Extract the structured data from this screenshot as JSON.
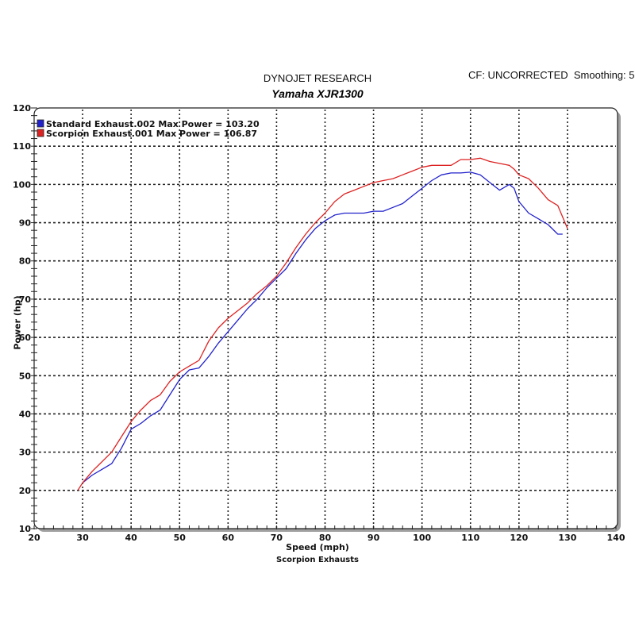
{
  "header": {
    "company": "DYNOJET RESEARCH",
    "vehicle": "Yamaha XJR1300",
    "info": "CF: UNCORRECTED  Smoothing: 5"
  },
  "legend": [
    {
      "label": "Standard Exhaust.002 Max Power = 103.20",
      "color": "#2222cc"
    },
    {
      "label": "Scorpion Exhaust.001 Max Power = 106.87",
      "color": "#dd2222"
    }
  ],
  "axes": {
    "xlabel": "Speed (mph)",
    "ylabel": "Power (hp)",
    "xticks": [
      "20",
      "30",
      "40",
      "50",
      "60",
      "70",
      "80",
      "90",
      "100",
      "110",
      "120",
      "130",
      "140"
    ],
    "yticks": [
      "10",
      "20",
      "30",
      "40",
      "50",
      "60",
      "70",
      "80",
      "90",
      "100",
      "110",
      "120"
    ]
  },
  "footer": "Scorpion Exhausts",
  "chart_data": {
    "type": "line",
    "title": "Yamaha XJR1300",
    "subtitle": "DYNOJET RESEARCH",
    "annotation": "CF: UNCORRECTED  Smoothing: 5",
    "xlabel": "Speed (mph)",
    "ylabel": "Power (hp)",
    "xlim": [
      20,
      140
    ],
    "ylim": [
      10,
      120
    ],
    "grid": true,
    "legend_position": "top-left",
    "series": [
      {
        "name": "Standard Exhaust.002 Max Power = 103.20",
        "color": "#2222cc",
        "x": [
          30,
          32,
          34,
          36,
          38,
          40,
          42,
          44,
          46,
          48,
          50,
          52,
          54,
          56,
          58,
          60,
          62,
          64,
          66,
          68,
          70,
          72,
          74,
          76,
          78,
          80,
          82,
          84,
          86,
          88,
          90,
          92,
          94,
          96,
          98,
          100,
          102,
          104,
          106,
          108,
          110,
          112,
          114,
          116,
          118,
          119,
          120,
          122,
          124,
          126,
          128,
          129
        ],
        "y": [
          22,
          24,
          25.5,
          27,
          31,
          36,
          37.5,
          39.5,
          41,
          45,
          49,
          51.5,
          52,
          55,
          58.5,
          61.5,
          64.5,
          67.5,
          70,
          73,
          75.5,
          78,
          82,
          85.5,
          88.5,
          90.5,
          92,
          92.5,
          92.5,
          92.5,
          93,
          93,
          94,
          95,
          97,
          99,
          101,
          102.5,
          103,
          103,
          103.2,
          102.5,
          100.5,
          98.5,
          100,
          99,
          95.5,
          92.5,
          91,
          89.5,
          87,
          87
        ]
      },
      {
        "name": "Scorpion Exhaust.001 Max Power = 106.87",
        "color": "#dd2222",
        "x": [
          29,
          30,
          32,
          34,
          36,
          38,
          40,
          42,
          44,
          46,
          48,
          50,
          52,
          54,
          56,
          58,
          60,
          62,
          64,
          66,
          68,
          70,
          72,
          74,
          76,
          78,
          80,
          82,
          84,
          86,
          88,
          90,
          92,
          94,
          96,
          98,
          100,
          102,
          104,
          106,
          108,
          110,
          112,
          114,
          116,
          118,
          119,
          120,
          122,
          124,
          126,
          128,
          130
        ],
        "y": [
          20,
          22,
          25,
          27.5,
          30,
          34,
          38,
          41,
          43.5,
          45,
          48.5,
          51,
          52.5,
          54,
          59,
          62.5,
          65,
          67,
          69,
          71.5,
          73.5,
          76,
          79.5,
          83.5,
          87,
          90,
          92.5,
          95.5,
          97.5,
          98.5,
          99.5,
          100.5,
          101,
          101.5,
          102.5,
          103.5,
          104.5,
          105,
          105,
          105,
          106.5,
          106.5,
          106.87,
          106,
          105.5,
          105,
          104,
          102.5,
          101.5,
          99,
          96,
          94.5,
          88.5
        ]
      }
    ]
  }
}
